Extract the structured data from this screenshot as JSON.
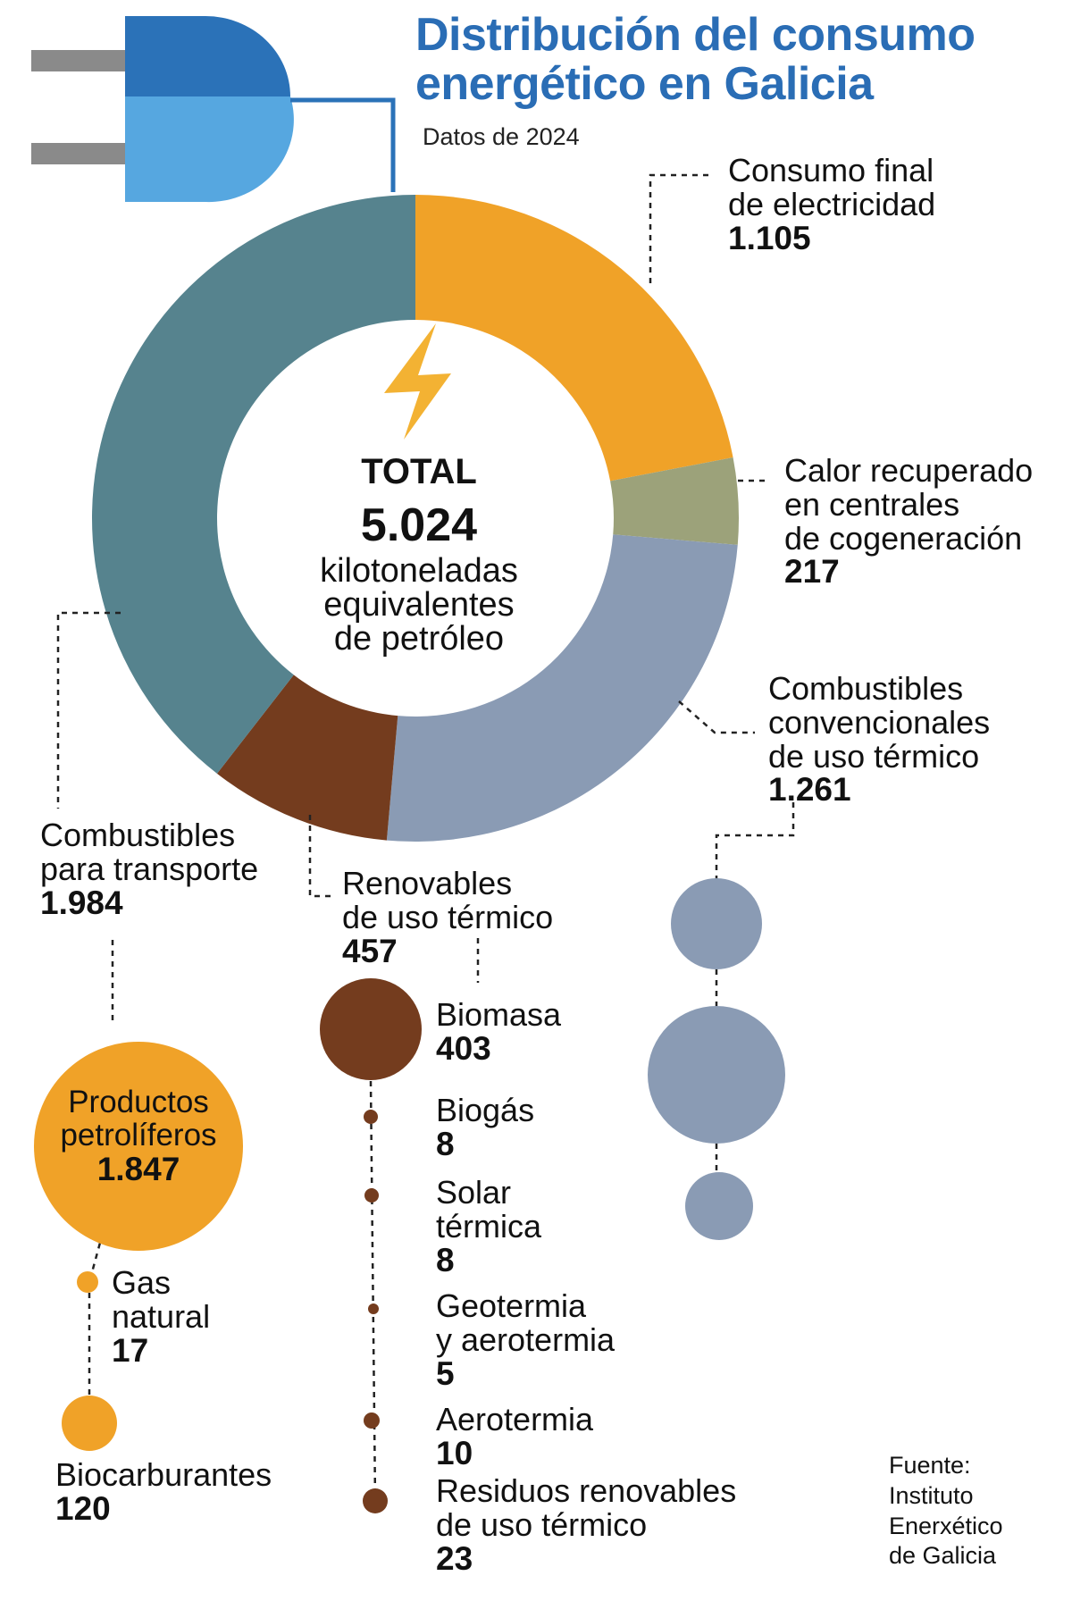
{
  "title_line1": "Distribución del consumo",
  "title_line2": "energético en Galicia",
  "subtitle": "Datos de 2024",
  "center": {
    "total_label": "TOTAL",
    "total_value": "5.024",
    "unit": "kilotoneladas\nequivalentes\nde petróleo"
  },
  "colors": {
    "electricity": "#f0a228",
    "cogeneration": "#9ca27a",
    "thermal_conventional": "#8a9bb4",
    "renewable_thermal": "#743c1e",
    "transport": "#56838e",
    "title": "#2a6db5",
    "plug_dark": "#2b72b8",
    "plug_light": "#56a7e0",
    "bolt": "#f3b233"
  },
  "chart_data": {
    "type": "pie",
    "donut": true,
    "total": 5024,
    "unit": "kilotoneladas equivalentes de petróleo",
    "slices": [
      {
        "name": "Consumo final\nde electricidad",
        "value": 1105,
        "value_label": "1.105"
      },
      {
        "name": "Calor recuperado\nen centrales\nde cogeneración",
        "value": 217,
        "value_label": "217"
      },
      {
        "name": "Combustibles\nconvencionales\nde uso térmico",
        "value": 1261,
        "value_label": "1.261"
      },
      {
        "name": "Renovables\nde uso térmico",
        "value": 457,
        "value_label": "457"
      },
      {
        "name": "Combustibles\npara transporte",
        "value": 1984,
        "value_label": "1.984"
      }
    ],
    "breakdown_transport": [
      {
        "name": "Productos\npetrolíferos",
        "value": 1847,
        "value_label": "1.847"
      },
      {
        "name": "Gas\nnatural",
        "value": 17,
        "value_label": "17"
      },
      {
        "name": "Biocarburantes",
        "value": 120,
        "value_label": "120"
      }
    ],
    "breakdown_renewables": [
      {
        "name": "Biomasa",
        "value": 403,
        "value_label": "403"
      },
      {
        "name": "Biogás",
        "value": 8,
        "value_label": "8"
      },
      {
        "name": "Solar\ntérmica",
        "value": 8,
        "value_label": "8"
      },
      {
        "name": "Geotermia\ny aerotermia",
        "value": 5,
        "value_label": "5"
      },
      {
        "name": "Aerotermia",
        "value": 10,
        "value_label": "10"
      },
      {
        "name": "Residuos renovables\nde uso térmico",
        "value": 23,
        "value_label": "23"
      }
    ],
    "breakdown_conventional_bubbles": [
      {
        "value": 1
      },
      {
        "value": 2
      },
      {
        "value": 0.7
      }
    ]
  },
  "source": "Fuente:\nInstituto\nEnerxético\nde Galicia"
}
